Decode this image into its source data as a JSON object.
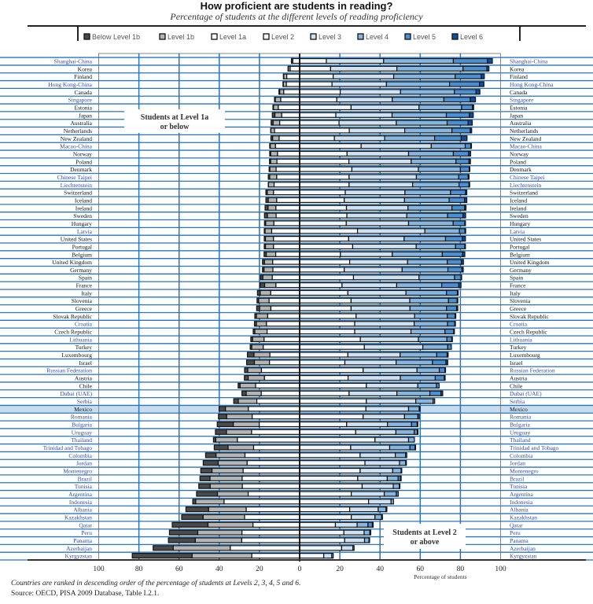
{
  "chart_data": {
    "type": "bar",
    "subtype": "diverging-stacked-horizontal",
    "title": "How proficient are students in reading?",
    "subtitle": "Percentage of students at the different levels of reading proficiency",
    "xlabel": "Percentage of students",
    "xlim": [
      -100,
      100
    ],
    "x_ticks": [
      -100,
      -80,
      -60,
      -40,
      -20,
      0,
      20,
      40,
      60,
      80,
      100
    ],
    "x_tick_labels": [
      "100",
      "80",
      "60",
      "40",
      "20",
      "0",
      "20",
      "40",
      "60",
      "80",
      "100"
    ],
    "legend": [
      "Below Level 1b",
      "Level 1b",
      "Level 1a",
      "Level 2",
      "Level 3",
      "Level 4",
      "Level 5",
      "Level 6"
    ],
    "legend_placement": "top",
    "colors": [
      "#4a4a4a",
      "#b5b5b5",
      "#ffffff",
      "#f2f7fc",
      "#cfe2f4",
      "#86b6e2",
      "#4b90d2",
      "#0d4fa3"
    ],
    "annotations": [
      "Students at Level 1a or below",
      "Students at Level 2 or above"
    ],
    "highlight": "Mexico",
    "countries": [
      {
        "name": "Shanghai-China",
        "partner": true,
        "values": [
          0.1,
          0.6,
          3.4,
          13.3,
          28.5,
          34.7,
          17.0,
          2.4
        ]
      },
      {
        "name": "Korea",
        "partner": false,
        "values": [
          0.2,
          0.9,
          4.7,
          15.4,
          33.0,
          32.9,
          11.9,
          1.0
        ]
      },
      {
        "name": "Finland",
        "partner": false,
        "values": [
          0.2,
          1.5,
          6.4,
          16.7,
          30.1,
          30.6,
          12.9,
          1.6
        ]
      },
      {
        "name": "Hong Kong-China",
        "partner": true,
        "values": [
          0.2,
          1.5,
          6.6,
          16.1,
          27.1,
          31.4,
          14.9,
          2.2
        ]
      },
      {
        "name": "Canada",
        "partner": false,
        "values": [
          0.4,
          2.0,
          7.9,
          20.2,
          30.0,
          26.8,
          10.8,
          1.9
        ]
      },
      {
        "name": "Singapore",
        "partner": true,
        "values": [
          0.4,
          2.7,
          9.4,
          18.5,
          27.6,
          25.7,
          13.1,
          2.6
        ]
      },
      {
        "name": "Estonia",
        "partner": false,
        "values": [
          0.3,
          2.4,
          10.6,
          25.6,
          33.8,
          21.2,
          5.4,
          0.6
        ]
      },
      {
        "name": "Japan",
        "partner": false,
        "values": [
          1.3,
          3.4,
          8.9,
          18.0,
          28.0,
          27.0,
          11.5,
          1.9
        ]
      },
      {
        "name": "Australia",
        "partner": false,
        "values": [
          1.0,
          3.3,
          9.9,
          19.6,
          28.5,
          25.3,
          10.4,
          2.1
        ]
      },
      {
        "name": "Netherlands",
        "partner": false,
        "values": [
          0.1,
          1.8,
          12.5,
          24.7,
          27.6,
          23.5,
          9.1,
          0.7
        ]
      },
      {
        "name": "New Zealand",
        "partner": false,
        "values": [
          0.9,
          3.2,
          10.2,
          17.3,
          25.0,
          24.9,
          13.2,
          2.9
        ]
      },
      {
        "name": "Macao-China",
        "partner": true,
        "values": [
          0.3,
          2.6,
          12.0,
          30.6,
          34.9,
          16.9,
          2.8,
          0.1
        ]
      },
      {
        "name": "Norway",
        "partner": false,
        "values": [
          0.5,
          3.4,
          11.0,
          23.6,
          30.6,
          22.3,
          7.6,
          1.0
        ]
      },
      {
        "name": "Poland",
        "partner": false,
        "values": [
          0.6,
          3.1,
          11.3,
          24.5,
          31.0,
          22.3,
          6.5,
          0.7
        ]
      },
      {
        "name": "Denmark",
        "partner": false,
        "values": [
          0.4,
          3.1,
          11.7,
          26.0,
          33.1,
          20.9,
          4.4,
          0.3
        ]
      },
      {
        "name": "Chinese Taipei",
        "partner": true,
        "values": [
          0.7,
          3.5,
          11.4,
          24.6,
          33.5,
          21.0,
          4.8,
          0.4
        ]
      },
      {
        "name": "Liechtenstein",
        "partner": true,
        "values": [
          0.1,
          2.8,
          12.7,
          24.6,
          31.6,
          23.1,
          5.0,
          0.1
        ]
      },
      {
        "name": "Switzerland",
        "partner": false,
        "values": [
          0.7,
          3.1,
          13.0,
          22.7,
          29.7,
          22.7,
          7.4,
          0.7
        ]
      },
      {
        "name": "Iceland",
        "partner": false,
        "values": [
          1.2,
          4.2,
          11.4,
          22.2,
          30.0,
          22.2,
          7.7,
          1.1
        ]
      },
      {
        "name": "Ireland",
        "partner": false,
        "values": [
          1.5,
          3.9,
          11.8,
          23.3,
          30.6,
          21.9,
          6.3,
          0.7
        ]
      },
      {
        "name": "Sweden",
        "partner": false,
        "values": [
          1.5,
          4.3,
          11.7,
          23.5,
          29.8,
          20.3,
          7.7,
          1.3
        ]
      },
      {
        "name": "Hungary",
        "partner": false,
        "values": [
          0.6,
          4.1,
          12.8,
          23.2,
          31.0,
          22.2,
          5.8,
          0.3
        ]
      },
      {
        "name": "Latvia",
        "partner": true,
        "values": [
          0.4,
          3.3,
          13.9,
          28.8,
          33.5,
          17.2,
          2.8,
          0.1
        ]
      },
      {
        "name": "United States",
        "partner": false,
        "values": [
          0.6,
          4.0,
          13.0,
          24.4,
          27.6,
          20.6,
          8.4,
          1.5
        ]
      },
      {
        "name": "Portugal",
        "partner": false,
        "values": [
          0.6,
          4.0,
          13.0,
          26.4,
          31.6,
          19.6,
          4.6,
          0.2
        ]
      },
      {
        "name": "Belgium",
        "partner": false,
        "values": [
          1.1,
          4.7,
          11.9,
          20.3,
          25.8,
          24.9,
          10.1,
          1.1
        ]
      },
      {
        "name": "United Kingdom",
        "partner": false,
        "values": [
          1.0,
          4.1,
          13.4,
          24.9,
          28.8,
          19.8,
          7.0,
          1.0
        ]
      },
      {
        "name": "Germany",
        "partner": false,
        "values": [
          0.8,
          4.4,
          13.3,
          22.2,
          28.8,
          22.8,
          7.0,
          0.6
        ]
      },
      {
        "name": "Spain",
        "partner": false,
        "values": [
          1.2,
          4.7,
          13.6,
          26.8,
          32.6,
          17.7,
          3.2,
          0.2
        ]
      },
      {
        "name": "France",
        "partner": false,
        "values": [
          2.3,
          5.6,
          11.8,
          21.1,
          27.2,
          22.4,
          8.5,
          1.1
        ]
      },
      {
        "name": "Italy",
        "partner": false,
        "values": [
          1.4,
          5.2,
          14.4,
          24.0,
          28.9,
          20.2,
          5.4,
          0.4
        ]
      },
      {
        "name": "Slovenia",
        "partner": false,
        "values": [
          0.8,
          5.2,
          15.2,
          25.6,
          29.2,
          19.3,
          4.3,
          0.3
        ]
      },
      {
        "name": "Greece",
        "partner": false,
        "values": [
          1.5,
          5.6,
          14.3,
          25.6,
          29.3,
          18.2,
          5.0,
          0.6
        ]
      },
      {
        "name": "Slovak Republic",
        "partner": false,
        "values": [
          0.8,
          5.6,
          15.9,
          28.1,
          29.1,
          16.3,
          3.9,
          0.3
        ]
      },
      {
        "name": "Croatia",
        "partner": true,
        "values": [
          1.0,
          5.0,
          16.5,
          27.4,
          29.6,
          16.6,
          3.6,
          0.3
        ]
      },
      {
        "name": "Czech Republic",
        "partner": false,
        "values": [
          0.8,
          6.1,
          16.2,
          27.4,
          28.0,
          16.9,
          4.4,
          0.2
        ]
      },
      {
        "name": "Lithuania",
        "partner": true,
        "values": [
          0.9,
          5.7,
          17.7,
          30.2,
          28.9,
          14.2,
          2.4,
          0.1
        ]
      },
      {
        "name": "Turkey",
        "partner": false,
        "values": [
          0.8,
          5.7,
          18.1,
          32.2,
          29.1,
          12.4,
          1.8,
          0.0
        ]
      },
      {
        "name": "Luxembourg",
        "partner": false,
        "values": [
          3.3,
          7.9,
          14.8,
          24.0,
          26.0,
          18.2,
          5.2,
          0.5
        ]
      },
      {
        "name": "Israel",
        "partner": false,
        "values": [
          3.9,
          7.5,
          15.0,
          22.5,
          25.5,
          18.1,
          6.7,
          0.9
        ]
      },
      {
        "name": "Russian Federation",
        "partner": true,
        "values": [
          1.6,
          6.8,
          19.0,
          31.6,
          26.8,
          11.1,
          2.8,
          0.3
        ]
      },
      {
        "name": "Austria",
        "partner": false,
        "values": [
          1.9,
          8.1,
          17.5,
          24.1,
          26.0,
          17.4,
          4.5,
          0.4
        ]
      },
      {
        "name": "Chile",
        "partner": false,
        "values": [
          1.0,
          7.7,
          21.9,
          33.2,
          25.6,
          9.3,
          1.3,
          0.0
        ]
      },
      {
        "name": "Dubai (UAE)",
        "partner": true,
        "values": [
          2.1,
          7.5,
          19.1,
          24.6,
          23.8,
          16.4,
          5.5,
          0.9
        ]
      },
      {
        "name": "Serbia",
        "partner": true,
        "values": [
          2.3,
          9.2,
          21.3,
          33.2,
          24.6,
          8.6,
          0.8,
          0.0
        ]
      },
      {
        "name": "Mexico",
        "partner": false,
        "values": [
          3.2,
          11.4,
          25.5,
          33.0,
          21.2,
          5.3,
          0.4,
          0.0
        ]
      },
      {
        "name": "Romania",
        "partner": true,
        "values": [
          4.1,
          12.7,
          23.6,
          31.6,
          20.6,
          6.6,
          0.7,
          0.0
        ]
      },
      {
        "name": "Bulgaria",
        "partner": true,
        "values": [
          8.0,
          12.9,
          20.1,
          23.4,
          20.3,
          12.0,
          2.8,
          0.2
        ]
      },
      {
        "name": "Uruguay",
        "partner": true,
        "values": [
          5.5,
          12.5,
          23.9,
          27.9,
          20.0,
          9.1,
          1.6,
          0.1
        ]
      },
      {
        "name": "Thailand",
        "partner": true,
        "values": [
          1.2,
          10.7,
          31.0,
          37.5,
          16.7,
          2.9,
          0.0,
          0.0
        ]
      },
      {
        "name": "Trinidad and Tobago",
        "partner": true,
        "values": [
          6.9,
          12.7,
          22.9,
          25.4,
          19.4,
          10.1,
          2.5,
          0.1
        ]
      },
      {
        "name": "Colombia",
        "partner": true,
        "values": [
          5.2,
          14.4,
          27.2,
          30.1,
          17.5,
          5.1,
          0.6,
          0.0
        ]
      },
      {
        "name": "Jordan",
        "partner": true,
        "values": [
          7.5,
          14.4,
          26.1,
          32.5,
          17.2,
          3.1,
          0.2,
          0.0
        ]
      },
      {
        "name": "Montenegro",
        "partner": true,
        "values": [
          5.6,
          15.5,
          28.1,
          30.1,
          16.2,
          4.2,
          0.3,
          0.0
        ]
      },
      {
        "name": "Brazil",
        "partner": true,
        "values": [
          5.0,
          16.0,
          28.6,
          28.9,
          14.7,
          5.4,
          1.2,
          0.1
        ]
      },
      {
        "name": "Tunisia",
        "partner": true,
        "values": [
          5.7,
          16.0,
          28.5,
          31.1,
          15.5,
          3.0,
          0.2,
          0.0
        ]
      },
      {
        "name": "Argentina",
        "partner": true,
        "values": [
          10.4,
          15.3,
          25.6,
          25.7,
          16.4,
          6.0,
          1.0,
          0.0
        ]
      },
      {
        "name": "Indonesia",
        "partner": true,
        "values": [
          1.5,
          14.1,
          37.6,
          34.3,
          11.2,
          1.2,
          0.0,
          0.0
        ]
      },
      {
        "name": "Albania",
        "partner": true,
        "values": [
          11.3,
          18.7,
          26.6,
          24.9,
          14.2,
          3.9,
          0.4,
          0.0
        ]
      },
      {
        "name": "Kazakhstan",
        "partner": true,
        "values": [
          10.7,
          20.6,
          27.4,
          25.7,
          11.8,
          3.3,
          0.4,
          0.0
        ]
      },
      {
        "name": "Qatar",
        "partner": true,
        "values": [
          17.8,
          22.4,
          23.2,
          17.8,
          10.8,
          5.4,
          2.2,
          0.4
        ]
      },
      {
        "name": "Peru",
        "partner": true,
        "values": [
          14.1,
          22.0,
          28.7,
          22.0,
          10.1,
          2.8,
          0.5,
          0.0
        ]
      },
      {
        "name": "Panama",
        "partner": true,
        "values": [
          13.4,
          23.1,
          28.8,
          22.4,
          9.9,
          2.2,
          0.2,
          0.0
        ]
      },
      {
        "name": "Azerbaijan",
        "partner": true,
        "values": [
          10.0,
          28.4,
          34.5,
          20.9,
          5.6,
          0.6,
          0.0,
          0.0
        ]
      },
      {
        "name": "Kyrgyzstan",
        "partner": true,
        "values": [
          29.8,
          29.7,
          23.8,
          12.0,
          4.0,
          0.7,
          0.0,
          0.0
        ]
      }
    ]
  },
  "footnotes": {
    "note": "Countries are ranked in descending order of the percentage of students at Levels 2, 3, 4, 5 and 6.",
    "source": "Source: OECD, PISA 2009 Database, Table I.2.1."
  },
  "theme": {
    "grid": "#2a74b8",
    "partner_label": "#3a4aa0",
    "oecd_label": "#111111",
    "highlight": "#c9dcef"
  }
}
